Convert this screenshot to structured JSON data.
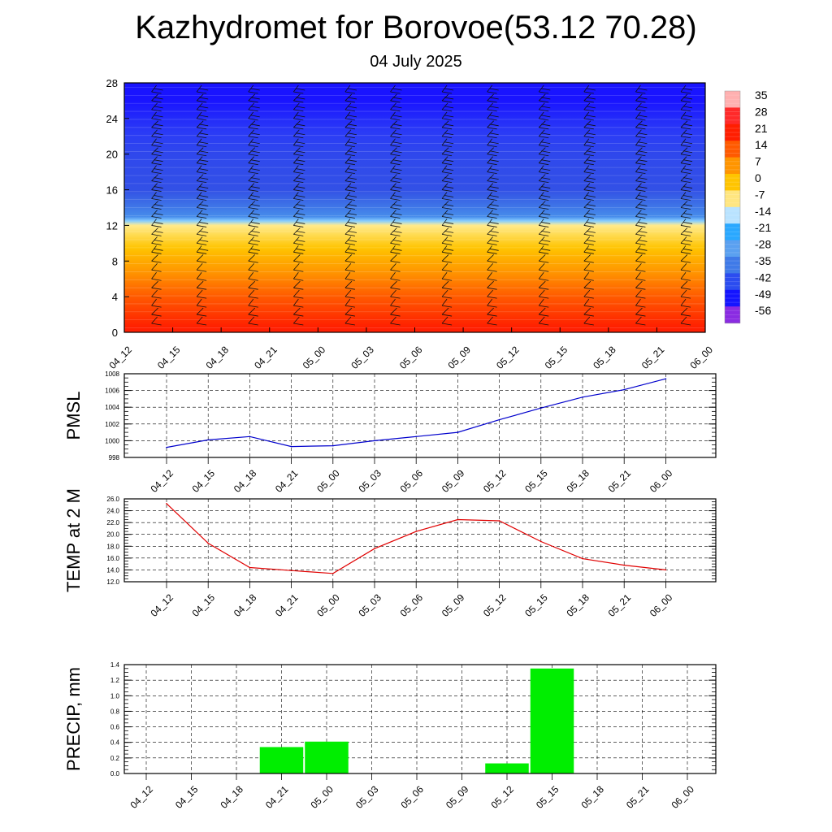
{
  "title": "Kazhydromet for Borovoe(53.12 70.28)",
  "subtitle": "04 July 2025",
  "colors": {
    "pmsl_line": "#0000cc",
    "temp_line": "#e00000",
    "precip_bar": "#00ee00",
    "colormap": [
      "#8a2be2",
      "#1414ff",
      "#2b4cf0",
      "#3f7ae8",
      "#5aa0f0",
      "#2aa8ff",
      "#b9e3ff",
      "#ffe680",
      "#ffc400",
      "#ff9500",
      "#ff5a00",
      "#ff1e00",
      "#ff2a2a",
      "#ffb0b0"
    ]
  },
  "chart_data": [
    {
      "type": "heatmap",
      "title": "",
      "xlabel": "",
      "ylabel": "",
      "x": [
        "04_12",
        "04_15",
        "04_18",
        "04_21",
        "05_00",
        "05_03",
        "05_06",
        "05_09",
        "05_12",
        "05_15",
        "05_18",
        "05_21",
        "06_00"
      ],
      "y_ticks": [
        "0",
        "4",
        "8",
        "12",
        "16",
        "20",
        "24",
        "28"
      ],
      "ylim": [
        0,
        28
      ],
      "colorbar_labels": [
        "35",
        "28",
        "21",
        "14",
        "7",
        "0",
        "-7",
        "-14",
        "-21",
        "-28",
        "-35",
        "-42",
        "-49",
        "-56"
      ],
      "profile_levels": [
        0,
        4,
        8,
        12,
        13,
        16,
        20,
        24,
        26,
        28
      ],
      "profile_temps": [
        22,
        14,
        4,
        -7,
        -28,
        -42,
        -45,
        -52,
        -56,
        -56
      ],
      "overlay": "wind barbs",
      "grid": false
    },
    {
      "type": "line",
      "title": "",
      "xlabel": "",
      "ylabel": "PMSL",
      "x": [
        "04_12",
        "04_15",
        "04_18",
        "04_21",
        "05_00",
        "05_03",
        "05_06",
        "05_09",
        "05_12",
        "05_15",
        "05_18",
        "05_21",
        "06_00"
      ],
      "series": [
        {
          "values": [
            999.2,
            1000.1,
            1000.5,
            999.3,
            999.4,
            1000.0,
            1000.5,
            1001.0,
            1002.5,
            1003.9,
            1005.2,
            1006.1,
            1007.4
          ]
        }
      ],
      "y_ticks": [
        "998",
        "1000",
        "1002",
        "1004",
        "1006",
        "1008"
      ],
      "ylim": [
        998,
        1008
      ],
      "grid": true
    },
    {
      "type": "line",
      "title": "",
      "xlabel": "",
      "ylabel": "TEMP at 2 M",
      "x": [
        "04_12",
        "04_15",
        "04_18",
        "04_21",
        "05_00",
        "05_03",
        "05_06",
        "05_09",
        "05_12",
        "05_15",
        "05_18",
        "05_21",
        "06_00"
      ],
      "series": [
        {
          "values": [
            25.2,
            18.5,
            14.4,
            13.9,
            13.4,
            17.6,
            20.5,
            22.5,
            22.3,
            18.8,
            15.9,
            14.8,
            14.0
          ]
        }
      ],
      "y_ticks": [
        "12.0",
        "14.0",
        "16.0",
        "18.0",
        "20.0",
        "22.0",
        "24.0",
        "26.0"
      ],
      "ylim": [
        12,
        26
      ],
      "grid": true
    },
    {
      "type": "bar",
      "title": "",
      "xlabel": "",
      "ylabel": "PRECIP, mm",
      "categories": [
        "04_12",
        "04_15",
        "04_18",
        "04_21",
        "05_00",
        "05_03",
        "05_06",
        "05_09",
        "05_12",
        "05_15",
        "05_18",
        "05_21",
        "06_00"
      ],
      "values": [
        0,
        0,
        0,
        0.34,
        0.41,
        0,
        0,
        0,
        0.13,
        1.35,
        0,
        0,
        0
      ],
      "y_ticks": [
        "0.0",
        "0.2",
        "0.4",
        "0.6",
        "0.8",
        "1.0",
        "1.2",
        "1.4"
      ],
      "ylim": [
        0,
        1.4
      ],
      "grid": true
    }
  ]
}
